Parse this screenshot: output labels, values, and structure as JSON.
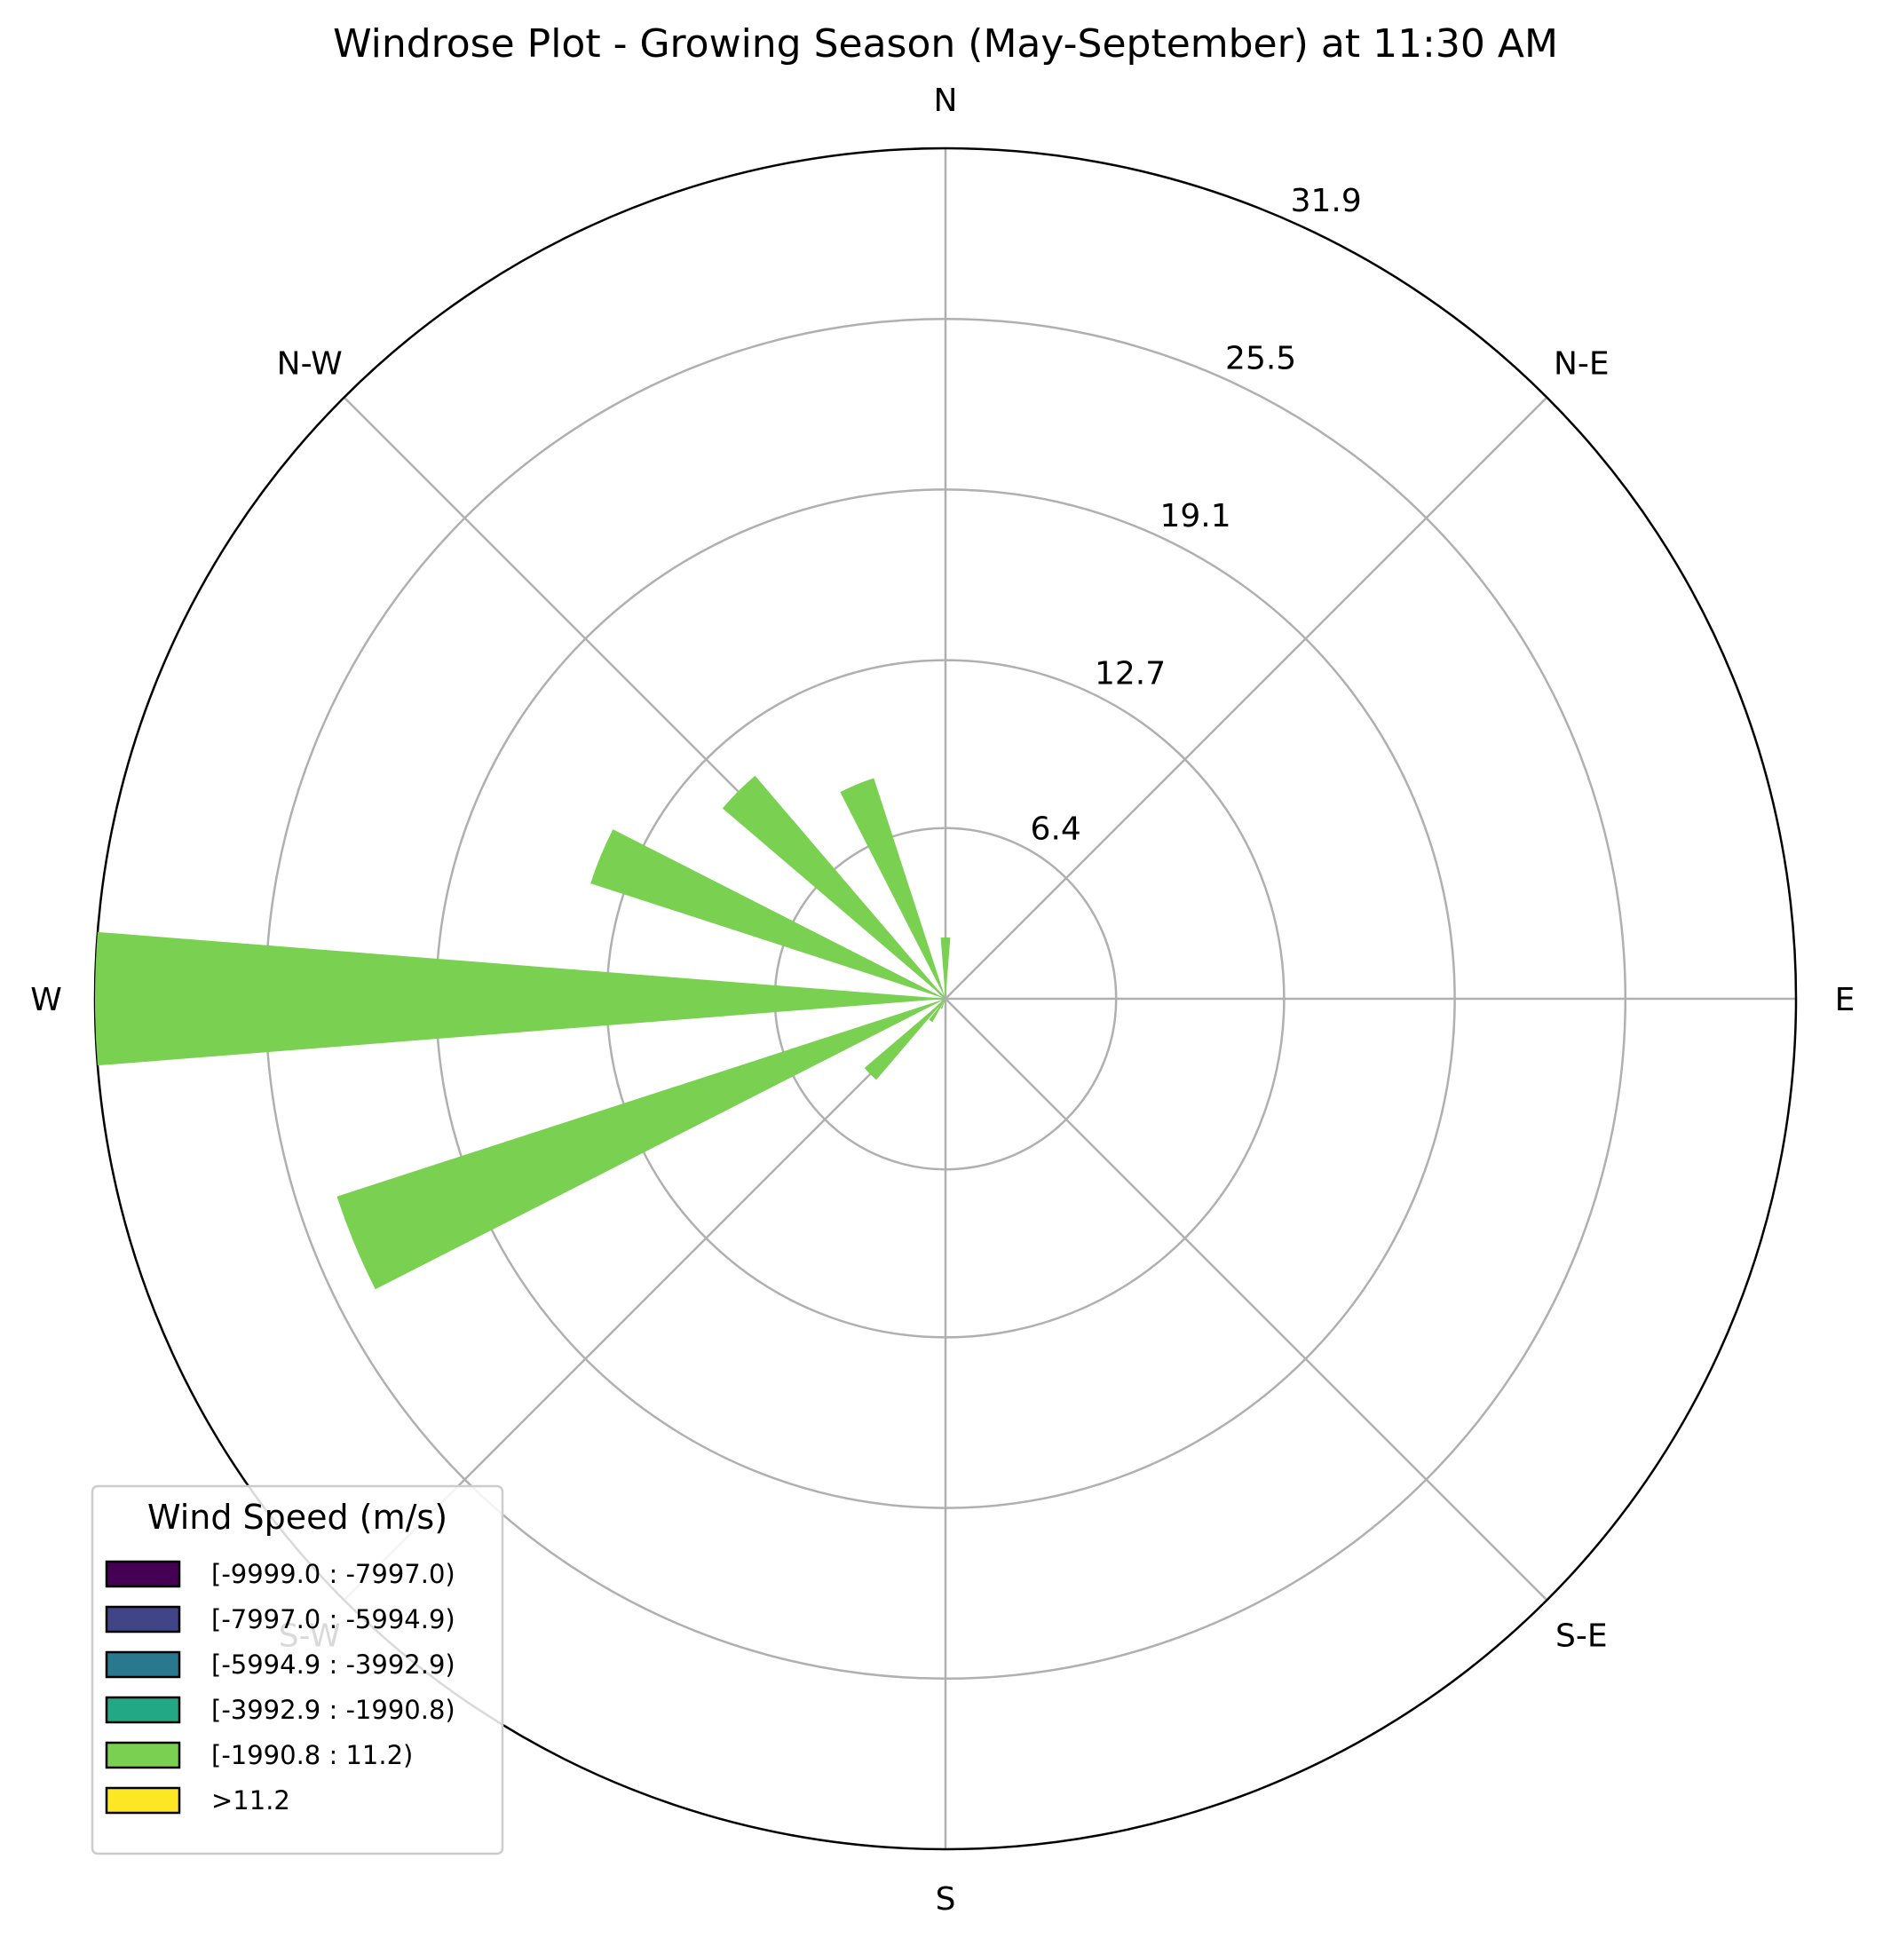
{
  "chart_data": {
    "type": "windrose",
    "title": "Windrose Plot - Growing Season (May-September) at 11:30 AM",
    "directions": [
      "N",
      "N-E",
      "E",
      "S-E",
      "S",
      "S-W",
      "W",
      "N-W"
    ],
    "radial_ticks": [
      "6.4",
      "12.7",
      "19.1",
      "25.5",
      "31.9"
    ],
    "radial_tick_values": [
      6.4,
      12.7,
      19.1,
      25.5,
      31.9
    ],
    "rmax": 31.9,
    "bar_color": "#7ad151",
    "bars": [
      {
        "direction_deg": 0,
        "value": 2.3
      },
      {
        "direction_deg": 11.25,
        "value": 0
      },
      {
        "direction_deg": 22.5,
        "value": 0
      },
      {
        "direction_deg": 33.75,
        "value": 0
      },
      {
        "direction_deg": 45,
        "value": 0
      },
      {
        "direction_deg": 56.25,
        "value": 0
      },
      {
        "direction_deg": 67.5,
        "value": 0
      },
      {
        "direction_deg": 78.75,
        "value": 0
      },
      {
        "direction_deg": 90,
        "value": 0
      },
      {
        "direction_deg": 101.25,
        "value": 0
      },
      {
        "direction_deg": 112.5,
        "value": 0
      },
      {
        "direction_deg": 123.75,
        "value": 0
      },
      {
        "direction_deg": 135,
        "value": 0
      },
      {
        "direction_deg": 146.25,
        "value": 0
      },
      {
        "direction_deg": 157.5,
        "value": 0
      },
      {
        "direction_deg": 168.75,
        "value": 0
      },
      {
        "direction_deg": 180,
        "value": 0
      },
      {
        "direction_deg": 191.25,
        "value": 0
      },
      {
        "direction_deg": 202.5,
        "value": 0.4
      },
      {
        "direction_deg": 213.75,
        "value": 1.0
      },
      {
        "direction_deg": 225,
        "value": 4.0
      },
      {
        "direction_deg": 236.25,
        "value": 0
      },
      {
        "direction_deg": 247.5,
        "value": 24.0
      },
      {
        "direction_deg": 258.75,
        "value": 0
      },
      {
        "direction_deg": 270,
        "value": 31.9
      },
      {
        "direction_deg": 281.25,
        "value": 0
      },
      {
        "direction_deg": 292.5,
        "value": 14.0
      },
      {
        "direction_deg": 303.75,
        "value": 0
      },
      {
        "direction_deg": 315,
        "value": 11.0
      },
      {
        "direction_deg": 326.25,
        "value": 0
      },
      {
        "direction_deg": 337.5,
        "value": 8.7
      },
      {
        "direction_deg": 348.75,
        "value": 0
      }
    ],
    "legend": {
      "title": "Wind Speed (m/s)",
      "placement": "lower-left",
      "entries": [
        {
          "label": "[-9999.0 : -7997.0)",
          "color": "#440154"
        },
        {
          "label": "[-7997.0 : -5994.9)",
          "color": "#414487"
        },
        {
          "label": "[-5994.9 : -3992.9)",
          "color": "#2a788e"
        },
        {
          "label": "[-3992.9 : -1990.8)",
          "color": "#22a884"
        },
        {
          "label": "[-1990.8 : 11.2)",
          "color": "#7ad151"
        },
        {
          "label": ">11.2",
          "color": "#fde725"
        }
      ]
    },
    "grid": true
  }
}
